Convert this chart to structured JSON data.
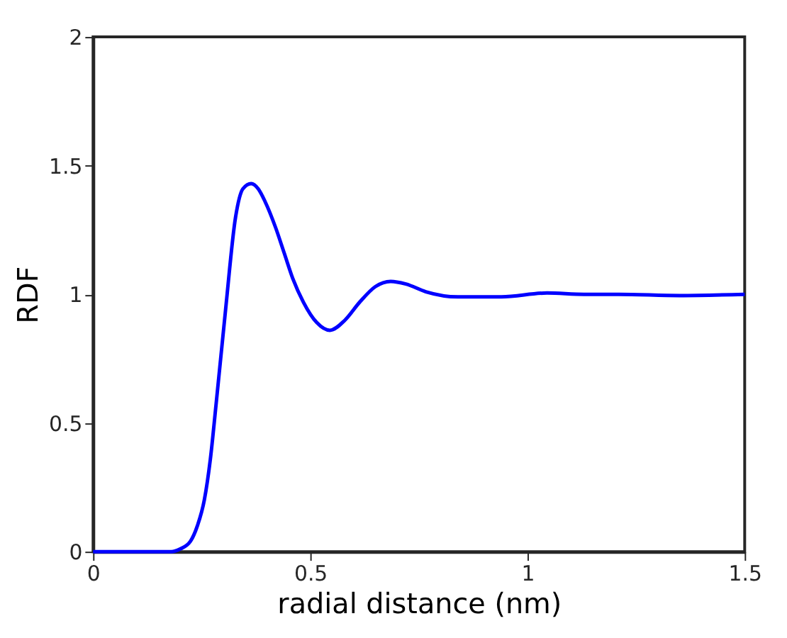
{
  "chart_data": {
    "type": "line",
    "xlabel": "radial distance (nm)",
    "ylabel": "RDF",
    "x": [
      0,
      0.1,
      0.18,
      0.2,
      0.224,
      0.24,
      0.256,
      0.27,
      0.283,
      0.305,
      0.328,
      0.345,
      0.364,
      0.38,
      0.396,
      0.42,
      0.44,
      0.46,
      0.484,
      0.515,
      0.545,
      0.58,
      0.614,
      0.65,
      0.685,
      0.72,
      0.766,
      0.84,
      0.94,
      1.045,
      1.13,
      1.21,
      1.35,
      1.5
    ],
    "series": [
      {
        "color": "#0000ff",
        "values": [
          0,
          0,
          0,
          0.01,
          0.04,
          0.1,
          0.2,
          0.36,
          0.57,
          0.94,
          1.3,
          1.41,
          1.43,
          1.41,
          1.36,
          1.26,
          1.16,
          1.06,
          0.97,
          0.89,
          0.86,
          0.9,
          0.97,
          1.03,
          1.05,
          1.04,
          1.01,
          0.99,
          0.99,
          1.005,
          1.0,
          1.0,
          0.995,
          1.0
        ]
      }
    ],
    "xlim": [
      0,
      1.5
    ],
    "xticks": [
      0,
      0.5,
      1,
      1.5
    ],
    "ylim": [
      0,
      2
    ],
    "yticks": [
      0,
      0.5,
      1,
      1.5,
      2
    ],
    "grid": false,
    "legend": false,
    "marker": "none",
    "line_style": "solid"
  }
}
